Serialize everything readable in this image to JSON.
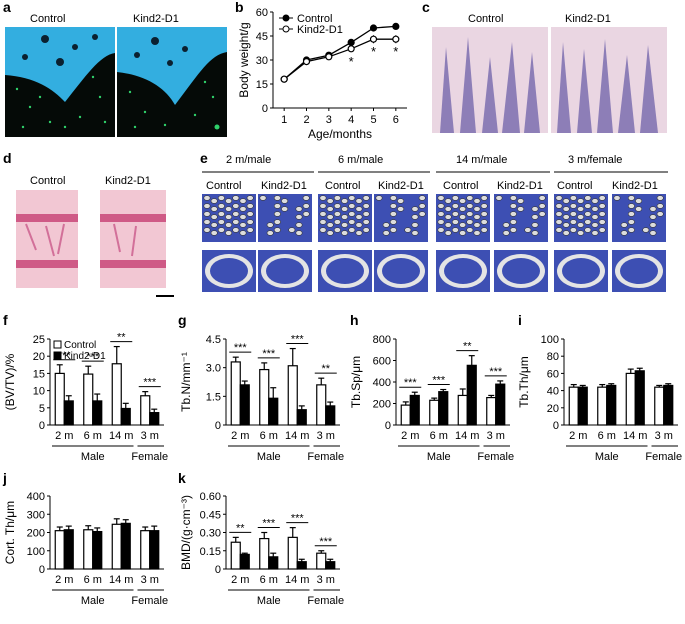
{
  "panel_letters": {
    "a": "a",
    "b": "b",
    "c": "c",
    "d": "d",
    "e": "e",
    "f": "f",
    "g": "g",
    "h": "h",
    "i": "i",
    "j": "j",
    "k": "k"
  },
  "group_labels": {
    "control": "Control",
    "kind2": "Kind2-D1"
  },
  "panel_e_headers": [
    "2 m/male",
    "6 m/male",
    "14 m/male",
    "3 m/female"
  ],
  "colors": {
    "fluor_bg": "#050a07",
    "fluor_bone": "#33aee0",
    "fluor_green": "#2fd06a",
    "he_pink": "#e6b2c4",
    "he_purple": "#7d6fb0",
    "ct_blue": "#3d4fb3",
    "ct_bone": "#e4e4e4",
    "filled": "#000000",
    "open": "#ffffff"
  },
  "chart_data": [
    {
      "id": "b",
      "type": "line",
      "xlabel": "Age/months",
      "ylabel": "Body weight/g",
      "x": [
        1,
        2,
        3,
        4,
        5,
        6
      ],
      "xlim": [
        0.5,
        6.5
      ],
      "ylim": [
        0,
        60
      ],
      "yticks": [
        0,
        15,
        30,
        45,
        60
      ],
      "series": [
        {
          "name": "Control",
          "values": [
            18,
            30,
            33,
            41,
            50,
            51
          ],
          "err": [
            1.2,
            1.2,
            1.2,
            1.5,
            1.5,
            1.5
          ]
        },
        {
          "name": "Kind2-D1",
          "values": [
            18,
            29,
            32,
            37,
            43,
            43
          ],
          "err": [
            1.2,
            1.2,
            1.2,
            1.5,
            2.5,
            2.5
          ]
        }
      ],
      "annotations": [
        {
          "x": 4,
          "text": "*"
        },
        {
          "x": 5,
          "text": "*"
        },
        {
          "x": 6,
          "text": "*"
        }
      ],
      "legend": "top-left"
    },
    {
      "id": "f",
      "type": "bar",
      "ylabel": "(BV/TV)/%",
      "ylim": [
        0,
        25
      ],
      "yticks": [
        0,
        5,
        10,
        15,
        20,
        25
      ],
      "categories": [
        "2 m",
        "6 m",
        "14 m",
        "3 m"
      ],
      "groups": [
        "Male",
        "Female"
      ],
      "series": [
        {
          "name": "Control",
          "values": [
            15,
            14.8,
            17.8,
            8.5
          ],
          "err": [
            2.5,
            2.3,
            5,
            1.2
          ]
        },
        {
          "name": "Kind2-D1",
          "values": [
            7,
            7,
            4.8,
            3.6
          ],
          "err": [
            1.5,
            2,
            1.5,
            1
          ]
        }
      ],
      "sig": [
        "***",
        "***",
        "**",
        "***"
      ],
      "legend": "top-left"
    },
    {
      "id": "g",
      "type": "bar",
      "ylabel": "Tb.N/mm⁻¹",
      "ylim": [
        0,
        4.5
      ],
      "yticks": [
        "0",
        "1.5",
        "3.0",
        "4.5"
      ],
      "categories": [
        "2 m",
        "6 m",
        "14 m",
        "3 m"
      ],
      "groups": [
        "Male",
        "Female"
      ],
      "series": [
        {
          "name": "Control",
          "values": [
            3.3,
            2.9,
            3.1,
            2.1
          ],
          "err": [
            0.25,
            0.35,
            0.9,
            0.35
          ]
        },
        {
          "name": "Kind2-D1",
          "values": [
            2.1,
            1.4,
            0.8,
            1.0
          ],
          "err": [
            0.2,
            0.55,
            0.2,
            0.2
          ]
        }
      ],
      "sig": [
        "***",
        "***",
        "***",
        "**"
      ]
    },
    {
      "id": "h",
      "type": "bar",
      "ylabel": "Tb.Sp/μm",
      "ylim": [
        0,
        800
      ],
      "yticks": [
        0,
        200,
        400,
        600,
        800
      ],
      "categories": [
        "2 m",
        "6 m",
        "14 m",
        "3 m"
      ],
      "groups": [
        "Male",
        "Female"
      ],
      "series": [
        {
          "name": "Control",
          "values": [
            185,
            230,
            275,
            255
          ],
          "err": [
            30,
            20,
            60,
            20
          ]
        },
        {
          "name": "Kind2-D1",
          "values": [
            275,
            310,
            555,
            380
          ],
          "err": [
            30,
            20,
            90,
            30
          ]
        }
      ],
      "sig": [
        "***",
        "***",
        "**",
        "***"
      ]
    },
    {
      "id": "i",
      "type": "bar",
      "ylabel": "Tb.Th/μm",
      "ylim": [
        0,
        100
      ],
      "yticks": [
        0,
        20,
        40,
        60,
        80,
        100
      ],
      "categories": [
        "2 m",
        "6 m",
        "14 m",
        "3 m"
      ],
      "groups": [
        "Male",
        "Female"
      ],
      "series": [
        {
          "name": "Control",
          "values": [
            44,
            44,
            60,
            44
          ],
          "err": [
            3,
            3,
            5,
            2
          ]
        },
        {
          "name": "Kind2-D1",
          "values": [
            44,
            46,
            63,
            46
          ],
          "err": [
            2,
            2,
            3,
            2
          ]
        }
      ],
      "sig": []
    },
    {
      "id": "j",
      "type": "bar",
      "ylabel": "Cort. Th/μm",
      "ylim": [
        0,
        400
      ],
      "yticks": [
        0,
        100,
        200,
        300,
        400
      ],
      "categories": [
        "2 m",
        "6 m",
        "14 m",
        "3 m"
      ],
      "groups": [
        "Male",
        "Female"
      ],
      "series": [
        {
          "name": "Control",
          "values": [
            210,
            215,
            245,
            210
          ],
          "err": [
            20,
            22,
            30,
            20
          ]
        },
        {
          "name": "Kind2-D1",
          "values": [
            215,
            205,
            250,
            210
          ],
          "err": [
            20,
            20,
            20,
            25
          ]
        }
      ],
      "sig": []
    },
    {
      "id": "k",
      "type": "bar",
      "ylabel": "BMD/(g·cm⁻³)",
      "ylim": [
        0,
        0.6
      ],
      "yticks": [
        "0",
        "0.15",
        "0.30",
        "0.45",
        "0.60"
      ],
      "categories": [
        "2 m",
        "6 m",
        "14 m",
        "3 m"
      ],
      "groups": [
        "Male",
        "Female"
      ],
      "series": [
        {
          "name": "Control",
          "values": [
            0.22,
            0.25,
            0.26,
            0.13
          ],
          "err": [
            0.04,
            0.05,
            0.08,
            0.02
          ]
        },
        {
          "name": "Kind2-D1",
          "values": [
            0.12,
            0.1,
            0.06,
            0.06
          ],
          "err": [
            0.01,
            0.03,
            0.02,
            0.02
          ]
        }
      ],
      "sig": [
        "**",
        "***",
        "***",
        "***"
      ]
    }
  ]
}
